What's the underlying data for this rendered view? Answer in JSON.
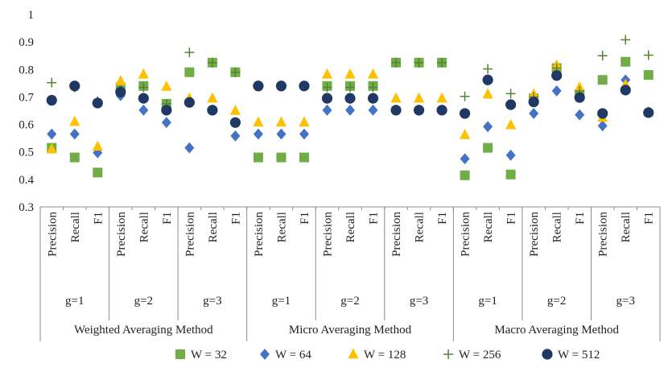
{
  "chart_data": {
    "type": "scatter",
    "title": "",
    "xlabel": "",
    "ylabel": "",
    "ylim": [
      0.3,
      1.0
    ],
    "y_ticks": [
      0.3,
      0.4,
      0.5,
      0.6,
      0.7,
      0.8,
      0.9,
      1.0
    ],
    "y_tick_labels": [
      "0.3",
      "0.4",
      "0.5",
      "0.6",
      "0.7",
      "0.8",
      "0.9",
      "1"
    ],
    "methods": [
      "Weighted Averaging Method",
      "Micro Averaging Method",
      "Macro Averaging Method"
    ],
    "groups": [
      "g=1",
      "g=2",
      "g=3"
    ],
    "metrics": [
      "Precision",
      "Recall",
      "F1"
    ],
    "series": [
      {
        "name": "W = 32",
        "marker": "square",
        "color": "#70ad47",
        "values": [
          0.515,
          0.48,
          0.425,
          0.735,
          0.74,
          0.675,
          0.79,
          0.825,
          0.79,
          0.48,
          0.48,
          0.48,
          0.74,
          0.74,
          0.74,
          0.825,
          0.825,
          0.825,
          0.415,
          0.515,
          0.418,
          0.695,
          0.805,
          0.71,
          0.762,
          0.828,
          0.78
        ]
      },
      {
        "name": "W = 64",
        "marker": "diamond",
        "color": "#4472c4",
        "values": [
          0.565,
          0.565,
          0.497,
          0.705,
          0.652,
          0.607,
          0.515,
          0.652,
          0.558,
          0.565,
          0.565,
          0.565,
          0.652,
          0.652,
          0.652,
          0.652,
          0.652,
          0.652,
          0.475,
          0.592,
          0.488,
          0.64,
          0.722,
          0.635,
          0.595,
          0.762,
          0.645
        ]
      },
      {
        "name": "W = 128",
        "marker": "triangle",
        "color": "#ffc000",
        "values": [
          0.51,
          0.61,
          0.52,
          0.758,
          0.782,
          0.738,
          0.695,
          0.695,
          0.65,
          0.608,
          0.608,
          0.608,
          0.782,
          0.782,
          0.782,
          0.695,
          0.695,
          0.695,
          0.562,
          0.71,
          0.598,
          0.71,
          0.815,
          0.735,
          0.625,
          0.745,
          0.645
        ]
      },
      {
        "name": "W = 256",
        "marker": "plus",
        "color": "#548235",
        "values": [
          0.752,
          0.735,
          0.685,
          0.725,
          0.735,
          0.675,
          0.862,
          0.825,
          0.79,
          0.74,
          0.74,
          0.74,
          0.735,
          0.735,
          0.735,
          0.825,
          0.825,
          0.825,
          0.702,
          0.802,
          0.712,
          0.7,
          0.805,
          0.722,
          0.85,
          0.908,
          0.852
        ]
      },
      {
        "name": "W = 512",
        "marker": "circle",
        "color": "#203864",
        "values": [
          0.688,
          0.74,
          0.678,
          0.718,
          0.695,
          0.652,
          0.68,
          0.652,
          0.607,
          0.74,
          0.74,
          0.74,
          0.695,
          0.695,
          0.695,
          0.652,
          0.652,
          0.652,
          0.64,
          0.762,
          0.672,
          0.682,
          0.778,
          0.698,
          0.64,
          0.725,
          0.643
        ]
      }
    ]
  }
}
